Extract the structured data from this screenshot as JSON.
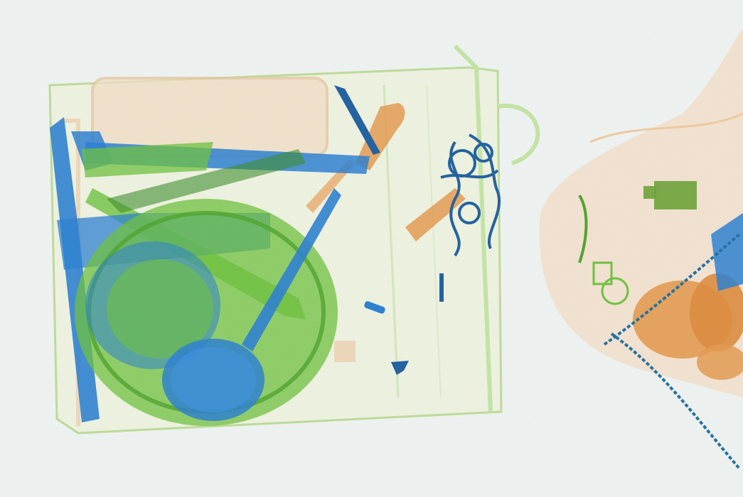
{
  "image": {
    "kind": "x-ray baggage scan",
    "palette": {
      "background": "#eef3f1",
      "organic_orange": "#e39a4f",
      "inorganic_green": "#6cc03c",
      "metal_blue": "#2a7fd0",
      "dense_blue": "#1f5f9e"
    },
    "objects": [
      "bag-outline",
      "frying-pan",
      "ladle",
      "spatula",
      "tongs",
      "knife",
      "chain",
      "handbag",
      "small-weight",
      "orange-organic-mass"
    ]
  }
}
